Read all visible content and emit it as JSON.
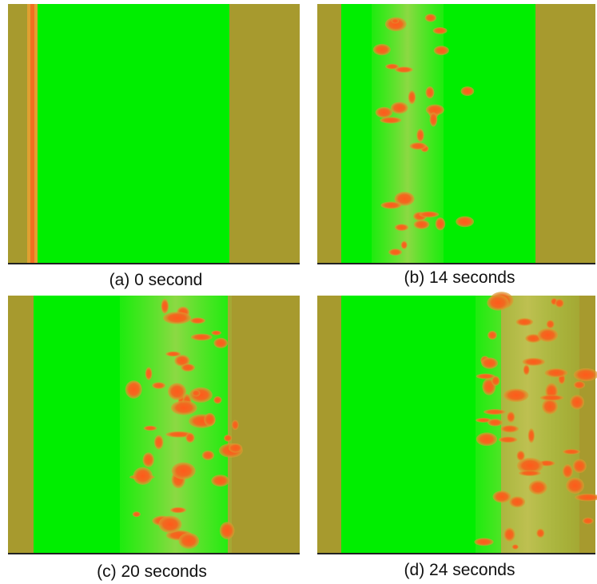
{
  "panels": [
    {
      "caption": "(a) 0 second"
    },
    {
      "caption": "(b) 14 seconds"
    },
    {
      "caption": "(c) 20 seconds"
    },
    {
      "caption": "(d) 24 seconds"
    }
  ]
}
